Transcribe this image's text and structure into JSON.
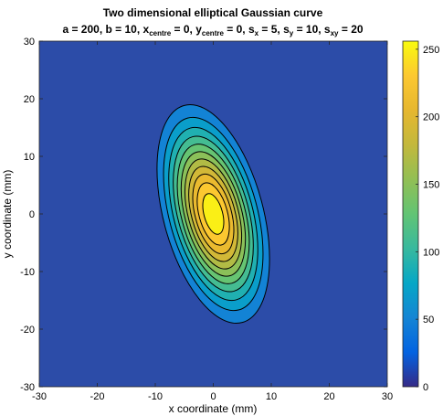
{
  "chart_data": {
    "type": "heatmap",
    "title": "Two dimensional elliptical Gaussian curve",
    "subtitle": {
      "a_text": "a = 200, b = 10, x",
      "xc_sub": "centre",
      "yc_text": " = 0, y",
      "yc_sub": "centre",
      "sx_text": " = 0, s",
      "sx_sub": "x",
      "sy_text": " = 5, s",
      "sy_sub": "y",
      "sxy_text": " = 10, s",
      "sxy_sub": "xy",
      "end_text": " = 20"
    },
    "xlabel": "x coordinate (mm)",
    "ylabel": "y coordinate (mm)",
    "xlim": [
      -30,
      30
    ],
    "ylim": [
      -30,
      30
    ],
    "x_ticks": [
      "-30",
      "-20",
      "-10",
      "0",
      "10",
      "20",
      "30"
    ],
    "y_ticks": [
      "-30",
      "-20",
      "-10",
      "0",
      "10",
      "20",
      "30"
    ],
    "colorbar": {
      "range": [
        0,
        256
      ],
      "ticks": [
        "0",
        "50",
        "100",
        "150",
        "200",
        "250"
      ],
      "colormap": "parula"
    },
    "params": {
      "a": 200,
      "b": 10,
      "x_centre": 0,
      "y_centre": 0,
      "s_x": 5,
      "s_y": 10,
      "s_xy": 20
    },
    "contour_levels": [
      40,
      60,
      80,
      100,
      120,
      140,
      160,
      180,
      200,
      220,
      240
    ],
    "peak_value": 256
  }
}
